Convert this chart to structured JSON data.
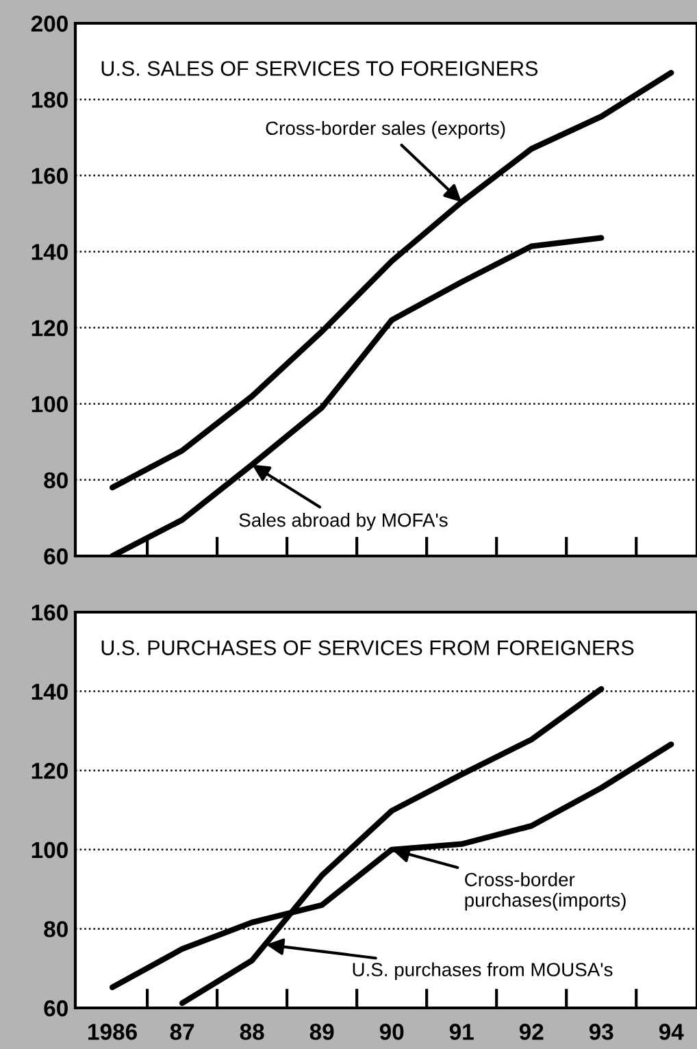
{
  "chart_data": [
    {
      "type": "line",
      "title": "U.S. SALES OF SERVICES TO FOREIGNERS",
      "x": [
        1986,
        1987,
        1988,
        1989,
        1990,
        1991,
        1992,
        1993,
        1994
      ],
      "series": [
        {
          "color": "#000000",
          "values": [
            78,
            87.7,
            102,
            119,
            137.5,
            153,
            167,
            175.5,
            187
          ]
        },
        {
          "color": "#000000",
          "values": [
            60,
            69.5,
            84,
            99,
            122,
            132,
            141.4,
            143.6,
            null
          ]
        }
      ],
      "annotations": [
        {
          "text": "Cross-border sales (exports)",
          "x": 1991,
          "y": 153
        },
        {
          "text": "Sales abroad by MOFA's",
          "x": 1988,
          "y": 84
        }
      ],
      "xlim": [
        1985.47,
        1994.37
      ],
      "ylim": [
        60,
        200
      ],
      "yticks": [
        60,
        80,
        100,
        120,
        140,
        160,
        180,
        200
      ],
      "xticks": [
        {
          "value": 1986.5,
          "label": null
        },
        {
          "value": 1987.5,
          "label": null
        },
        {
          "value": 1988.5,
          "label": null
        },
        {
          "value": 1989.5,
          "label": null
        },
        {
          "value": 1990.5,
          "label": null
        },
        {
          "value": 1991.5,
          "label": null
        },
        {
          "value": 1992.5,
          "label": null
        },
        {
          "value": 1993.5,
          "label": null
        }
      ],
      "tick_labels": "y",
      "grid": "y",
      "line_style": "solid",
      "marker": "none"
    },
    {
      "type": "line",
      "title": "U.S. PURCHASES OF SERVICES FROM FOREIGNERS",
      "x": [
        1986,
        1987,
        1988,
        1989,
        1990,
        1991,
        1992,
        1993,
        1994
      ],
      "series": [
        {
          "color": "#000000",
          "values": [
            65.2,
            74.9,
            81.6,
            86,
            100,
            101.4,
            106,
            115.6,
            126.6
          ]
        },
        {
          "color": "#000000",
          "values": [
            null,
            61.2,
            72,
            93.5,
            109.8,
            119,
            127.8,
            140.6,
            null
          ]
        }
      ],
      "annotations": [
        {
          "text": "Cross-border\npurchases(imports)",
          "x": 1990,
          "y": 100
        },
        {
          "text": "U.S. purchases from MOUSA's",
          "x": 1988.2,
          "y": 76
        }
      ],
      "xlim": [
        1985.47,
        1994.37
      ],
      "ylim": [
        60,
        160
      ],
      "yticks": [
        60,
        80,
        100,
        120,
        140,
        160
      ],
      "xticks": [
        {
          "value": 1986,
          "label": "1986"
        },
        {
          "value": 1986.5,
          "label": null
        },
        {
          "value": 1987,
          "label": "87"
        },
        {
          "value": 1987.5,
          "label": null
        },
        {
          "value": 1988,
          "label": "88"
        },
        {
          "value": 1988.5,
          "label": null
        },
        {
          "value": 1989,
          "label": "89"
        },
        {
          "value": 1989.5,
          "label": null
        },
        {
          "value": 1990,
          "label": "90"
        },
        {
          "value": 1990.5,
          "label": null
        },
        {
          "value": 1991,
          "label": "91"
        },
        {
          "value": 1991.5,
          "label": null
        },
        {
          "value": 1992,
          "label": "92"
        },
        {
          "value": 1992.5,
          "label": null
        },
        {
          "value": 1993,
          "label": "93"
        },
        {
          "value": 1993.5,
          "label": null
        },
        {
          "value": 1994,
          "label": "94"
        }
      ],
      "grid": "y",
      "line_style": "solid",
      "marker": "none"
    }
  ]
}
